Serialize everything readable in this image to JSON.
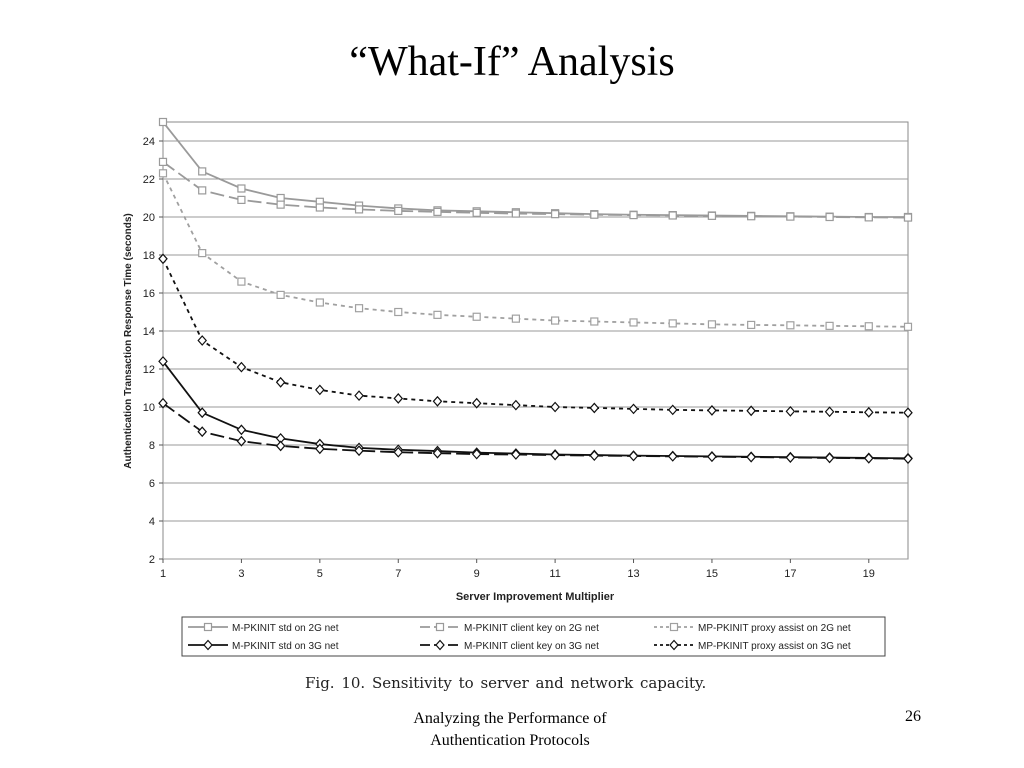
{
  "slide": {
    "title": "“What-If” Analysis",
    "caption": "Fig. 10.   Sensitivity to server and network capacity.",
    "footer_line1": "Analyzing the Performance of",
    "footer_line2": "Authentication Protocols",
    "slide_number": "26"
  },
  "chart_data": {
    "type": "line",
    "title": "",
    "xlabel": "Server Improvement Multiplier",
    "ylabel": "Authentication Transaction Response Time (seconds)",
    "xlim": [
      1,
      20
    ],
    "ylim": [
      2,
      25
    ],
    "xticks": [
      1,
      3,
      5,
      7,
      9,
      11,
      13,
      15,
      17,
      19
    ],
    "yticks": [
      2,
      4,
      6,
      8,
      10,
      12,
      14,
      16,
      18,
      20,
      22,
      24
    ],
    "grid": "horizontal",
    "legend_position": "bottom",
    "x": [
      1,
      2,
      3,
      4,
      5,
      6,
      7,
      8,
      9,
      10,
      11,
      12,
      13,
      14,
      15,
      16,
      17,
      18,
      19,
      20
    ],
    "series": [
      {
        "name": "M-PKINIT std on 2G net",
        "color": "#9a9a9a",
        "style": "solid",
        "marker": "square",
        "values": [
          25.0,
          22.4,
          21.5,
          21.0,
          20.8,
          20.6,
          20.45,
          20.35,
          20.3,
          20.25,
          20.2,
          20.15,
          20.12,
          20.1,
          20.08,
          20.06,
          20.04,
          20.02,
          20.0,
          20.0
        ]
      },
      {
        "name": "M-PKINIT client key on 2G net",
        "color": "#9a9a9a",
        "style": "longdash",
        "marker": "square",
        "values": [
          22.9,
          21.4,
          20.9,
          20.65,
          20.5,
          20.4,
          20.32,
          20.27,
          20.22,
          20.18,
          20.15,
          20.12,
          20.1,
          20.08,
          20.06,
          20.04,
          20.02,
          20.0,
          19.98,
          19.97
        ]
      },
      {
        "name": "MP-PKINIT proxy assist on 2G net",
        "color": "#a0a0a0",
        "style": "dotted",
        "marker": "square",
        "values": [
          22.3,
          18.1,
          16.6,
          15.9,
          15.5,
          15.2,
          15.0,
          14.85,
          14.75,
          14.65,
          14.55,
          14.5,
          14.45,
          14.4,
          14.35,
          14.32,
          14.3,
          14.27,
          14.25,
          14.22
        ]
      },
      {
        "name": "M-PKINIT std on 3G net",
        "color": "#111111",
        "style": "solid",
        "marker": "diamond",
        "values": [
          12.4,
          9.7,
          8.8,
          8.35,
          8.05,
          7.85,
          7.75,
          7.68,
          7.6,
          7.55,
          7.5,
          7.47,
          7.44,
          7.42,
          7.4,
          7.38,
          7.36,
          7.34,
          7.32,
          7.3
        ]
      },
      {
        "name": "M-PKINIT client key on 3G net",
        "color": "#111111",
        "style": "longdash",
        "marker": "diamond",
        "values": [
          10.2,
          8.7,
          8.2,
          7.95,
          7.8,
          7.7,
          7.62,
          7.57,
          7.52,
          7.5,
          7.47,
          7.44,
          7.42,
          7.4,
          7.38,
          7.36,
          7.34,
          7.32,
          7.3,
          7.28
        ]
      },
      {
        "name": "MP-PKINIT proxy assist on 3G net",
        "color": "#111111",
        "style": "dotted",
        "marker": "diamond",
        "values": [
          17.8,
          13.5,
          12.1,
          11.3,
          10.9,
          10.6,
          10.45,
          10.3,
          10.2,
          10.1,
          10.0,
          9.95,
          9.9,
          9.85,
          9.82,
          9.8,
          9.77,
          9.75,
          9.72,
          9.7
        ]
      }
    ]
  }
}
